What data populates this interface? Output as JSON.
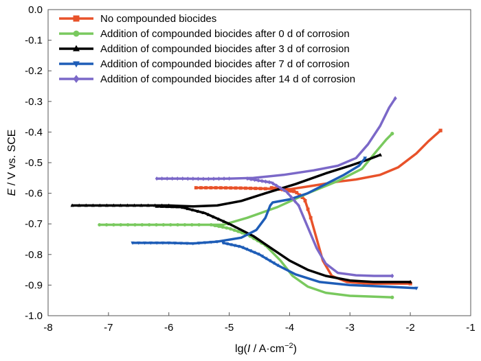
{
  "chart_data": {
    "type": "line",
    "xlabel_parts": [
      "lg(",
      "I",
      " / A·cm",
      "−2",
      ")"
    ],
    "ylabel_parts": [
      "E",
      " / V vs. SCE"
    ],
    "xlim": [
      -8,
      -1
    ],
    "ylim": [
      -1.0,
      0.0
    ],
    "xticks": [
      -8,
      -7,
      -6,
      -5,
      -4,
      -3,
      -2,
      -1
    ],
    "yticks": [
      0.0,
      -0.1,
      -0.2,
      -0.3,
      -0.4,
      -0.5,
      -0.6,
      -0.7,
      -0.8,
      -0.9,
      -1.0
    ],
    "ytick_labels": [
      "0.0",
      "-0.1",
      "-0.2",
      "-0.3",
      "-0.4",
      "-0.5",
      "-0.6",
      "-0.7",
      "-0.8",
      "-0.9",
      "-1.0"
    ],
    "grid": false,
    "legend_position": "top-left",
    "series": [
      {
        "name": "No compounded biocides",
        "color": "#e8522a",
        "marker": "square",
        "anodic": [
          [
            -5.55,
            -0.582
          ],
          [
            -5.2,
            -0.582
          ],
          [
            -4.8,
            -0.583
          ],
          [
            -4.4,
            -0.585
          ],
          [
            -4.0,
            -0.587
          ],
          [
            -3.6,
            -0.575
          ],
          [
            -3.2,
            -0.562
          ],
          [
            -2.9,
            -0.555
          ],
          [
            -2.5,
            -0.54
          ],
          [
            -2.2,
            -0.515
          ],
          [
            -1.9,
            -0.47
          ],
          [
            -1.7,
            -0.43
          ],
          [
            -1.5,
            -0.395
          ]
        ],
        "cathodic": [
          [
            -4.3,
            -0.582
          ],
          [
            -3.9,
            -0.595
          ],
          [
            -3.75,
            -0.62
          ],
          [
            -3.65,
            -0.68
          ],
          [
            -3.55,
            -0.75
          ],
          [
            -3.45,
            -0.82
          ],
          [
            -3.3,
            -0.87
          ],
          [
            -3.05,
            -0.89
          ],
          [
            -2.7,
            -0.895
          ],
          [
            -2.3,
            -0.895
          ],
          [
            -2.0,
            -0.895
          ]
        ]
      },
      {
        "name": "Addition of compounded biocides after 0 d of corrosion",
        "color": "#79c95e",
        "marker": "circle",
        "anodic": [
          [
            -7.15,
            -0.703
          ],
          [
            -6.7,
            -0.703
          ],
          [
            -6.0,
            -0.703
          ],
          [
            -5.5,
            -0.703
          ],
          [
            -5.1,
            -0.703
          ],
          [
            -4.7,
            -0.68
          ],
          [
            -4.2,
            -0.645
          ],
          [
            -3.7,
            -0.6
          ],
          [
            -3.2,
            -0.56
          ],
          [
            -2.8,
            -0.52
          ],
          [
            -2.55,
            -0.46
          ],
          [
            -2.4,
            -0.425
          ],
          [
            -2.3,
            -0.405
          ]
        ],
        "cathodic": [
          [
            -5.3,
            -0.703
          ],
          [
            -5.0,
            -0.715
          ],
          [
            -4.7,
            -0.735
          ],
          [
            -4.4,
            -0.77
          ],
          [
            -4.15,
            -0.82
          ],
          [
            -3.95,
            -0.87
          ],
          [
            -3.7,
            -0.905
          ],
          [
            -3.4,
            -0.925
          ],
          [
            -3.0,
            -0.935
          ],
          [
            -2.6,
            -0.938
          ],
          [
            -2.3,
            -0.94
          ]
        ]
      },
      {
        "name": "Addition of compounded biocides after 3 d of corrosion",
        "color": "#000000",
        "marker": "triangle-up",
        "anodic": [
          [
            -7.6,
            -0.64
          ],
          [
            -7.0,
            -0.64
          ],
          [
            -6.4,
            -0.64
          ],
          [
            -6.0,
            -0.64
          ],
          [
            -5.6,
            -0.643
          ],
          [
            -5.2,
            -0.64
          ],
          [
            -4.8,
            -0.625
          ],
          [
            -4.4,
            -0.6
          ],
          [
            -3.9,
            -0.57
          ],
          [
            -3.4,
            -0.535
          ],
          [
            -3.0,
            -0.51
          ],
          [
            -2.7,
            -0.49
          ],
          [
            -2.5,
            -0.475
          ]
        ],
        "cathodic": [
          [
            -6.2,
            -0.643
          ],
          [
            -5.8,
            -0.645
          ],
          [
            -5.4,
            -0.665
          ],
          [
            -5.0,
            -0.7
          ],
          [
            -4.6,
            -0.74
          ],
          [
            -4.3,
            -0.78
          ],
          [
            -4.0,
            -0.82
          ],
          [
            -3.7,
            -0.85
          ],
          [
            -3.4,
            -0.87
          ],
          [
            -3.0,
            -0.885
          ],
          [
            -2.6,
            -0.89
          ],
          [
            -2.0,
            -0.89
          ]
        ]
      },
      {
        "name": "Addition of compounded biocides after 7 d of corrosion",
        "color": "#1e5db7",
        "marker": "triangle-down",
        "anodic": [
          [
            -6.6,
            -0.762
          ],
          [
            -6.0,
            -0.762
          ],
          [
            -5.6,
            -0.764
          ],
          [
            -5.2,
            -0.758
          ],
          [
            -4.8,
            -0.745
          ],
          [
            -4.55,
            -0.72
          ],
          [
            -4.4,
            -0.68
          ],
          [
            -4.32,
            -0.64
          ],
          [
            -4.28,
            -0.63
          ],
          [
            -4.0,
            -0.62
          ],
          [
            -3.7,
            -0.6
          ],
          [
            -3.4,
            -0.57
          ],
          [
            -3.1,
            -0.54
          ],
          [
            -2.85,
            -0.51
          ],
          [
            -2.75,
            -0.485
          ]
        ],
        "cathodic": [
          [
            -5.1,
            -0.762
          ],
          [
            -4.8,
            -0.775
          ],
          [
            -4.5,
            -0.8
          ],
          [
            -4.2,
            -0.835
          ],
          [
            -3.9,
            -0.865
          ],
          [
            -3.5,
            -0.89
          ],
          [
            -3.0,
            -0.9
          ],
          [
            -2.4,
            -0.905
          ],
          [
            -1.9,
            -0.91
          ]
        ]
      },
      {
        "name": "Addition of compounded biocides after 14 d of corrosion",
        "color": "#7b68c8",
        "marker": "diamond",
        "anodic": [
          [
            -6.2,
            -0.552
          ],
          [
            -5.8,
            -0.552
          ],
          [
            -5.4,
            -0.553
          ],
          [
            -5.0,
            -0.552
          ],
          [
            -4.6,
            -0.55
          ],
          [
            -4.1,
            -0.54
          ],
          [
            -3.6,
            -0.525
          ],
          [
            -3.2,
            -0.51
          ],
          [
            -2.9,
            -0.485
          ],
          [
            -2.7,
            -0.44
          ],
          [
            -2.5,
            -0.38
          ],
          [
            -2.35,
            -0.32
          ],
          [
            -2.25,
            -0.29
          ]
        ],
        "cathodic": [
          [
            -4.7,
            -0.552
          ],
          [
            -4.3,
            -0.565
          ],
          [
            -4.05,
            -0.595
          ],
          [
            -3.85,
            -0.64
          ],
          [
            -3.7,
            -0.71
          ],
          [
            -3.55,
            -0.78
          ],
          [
            -3.4,
            -0.83
          ],
          [
            -3.2,
            -0.86
          ],
          [
            -2.9,
            -0.868
          ],
          [
            -2.6,
            -0.87
          ],
          [
            -2.3,
            -0.87
          ]
        ]
      }
    ]
  }
}
